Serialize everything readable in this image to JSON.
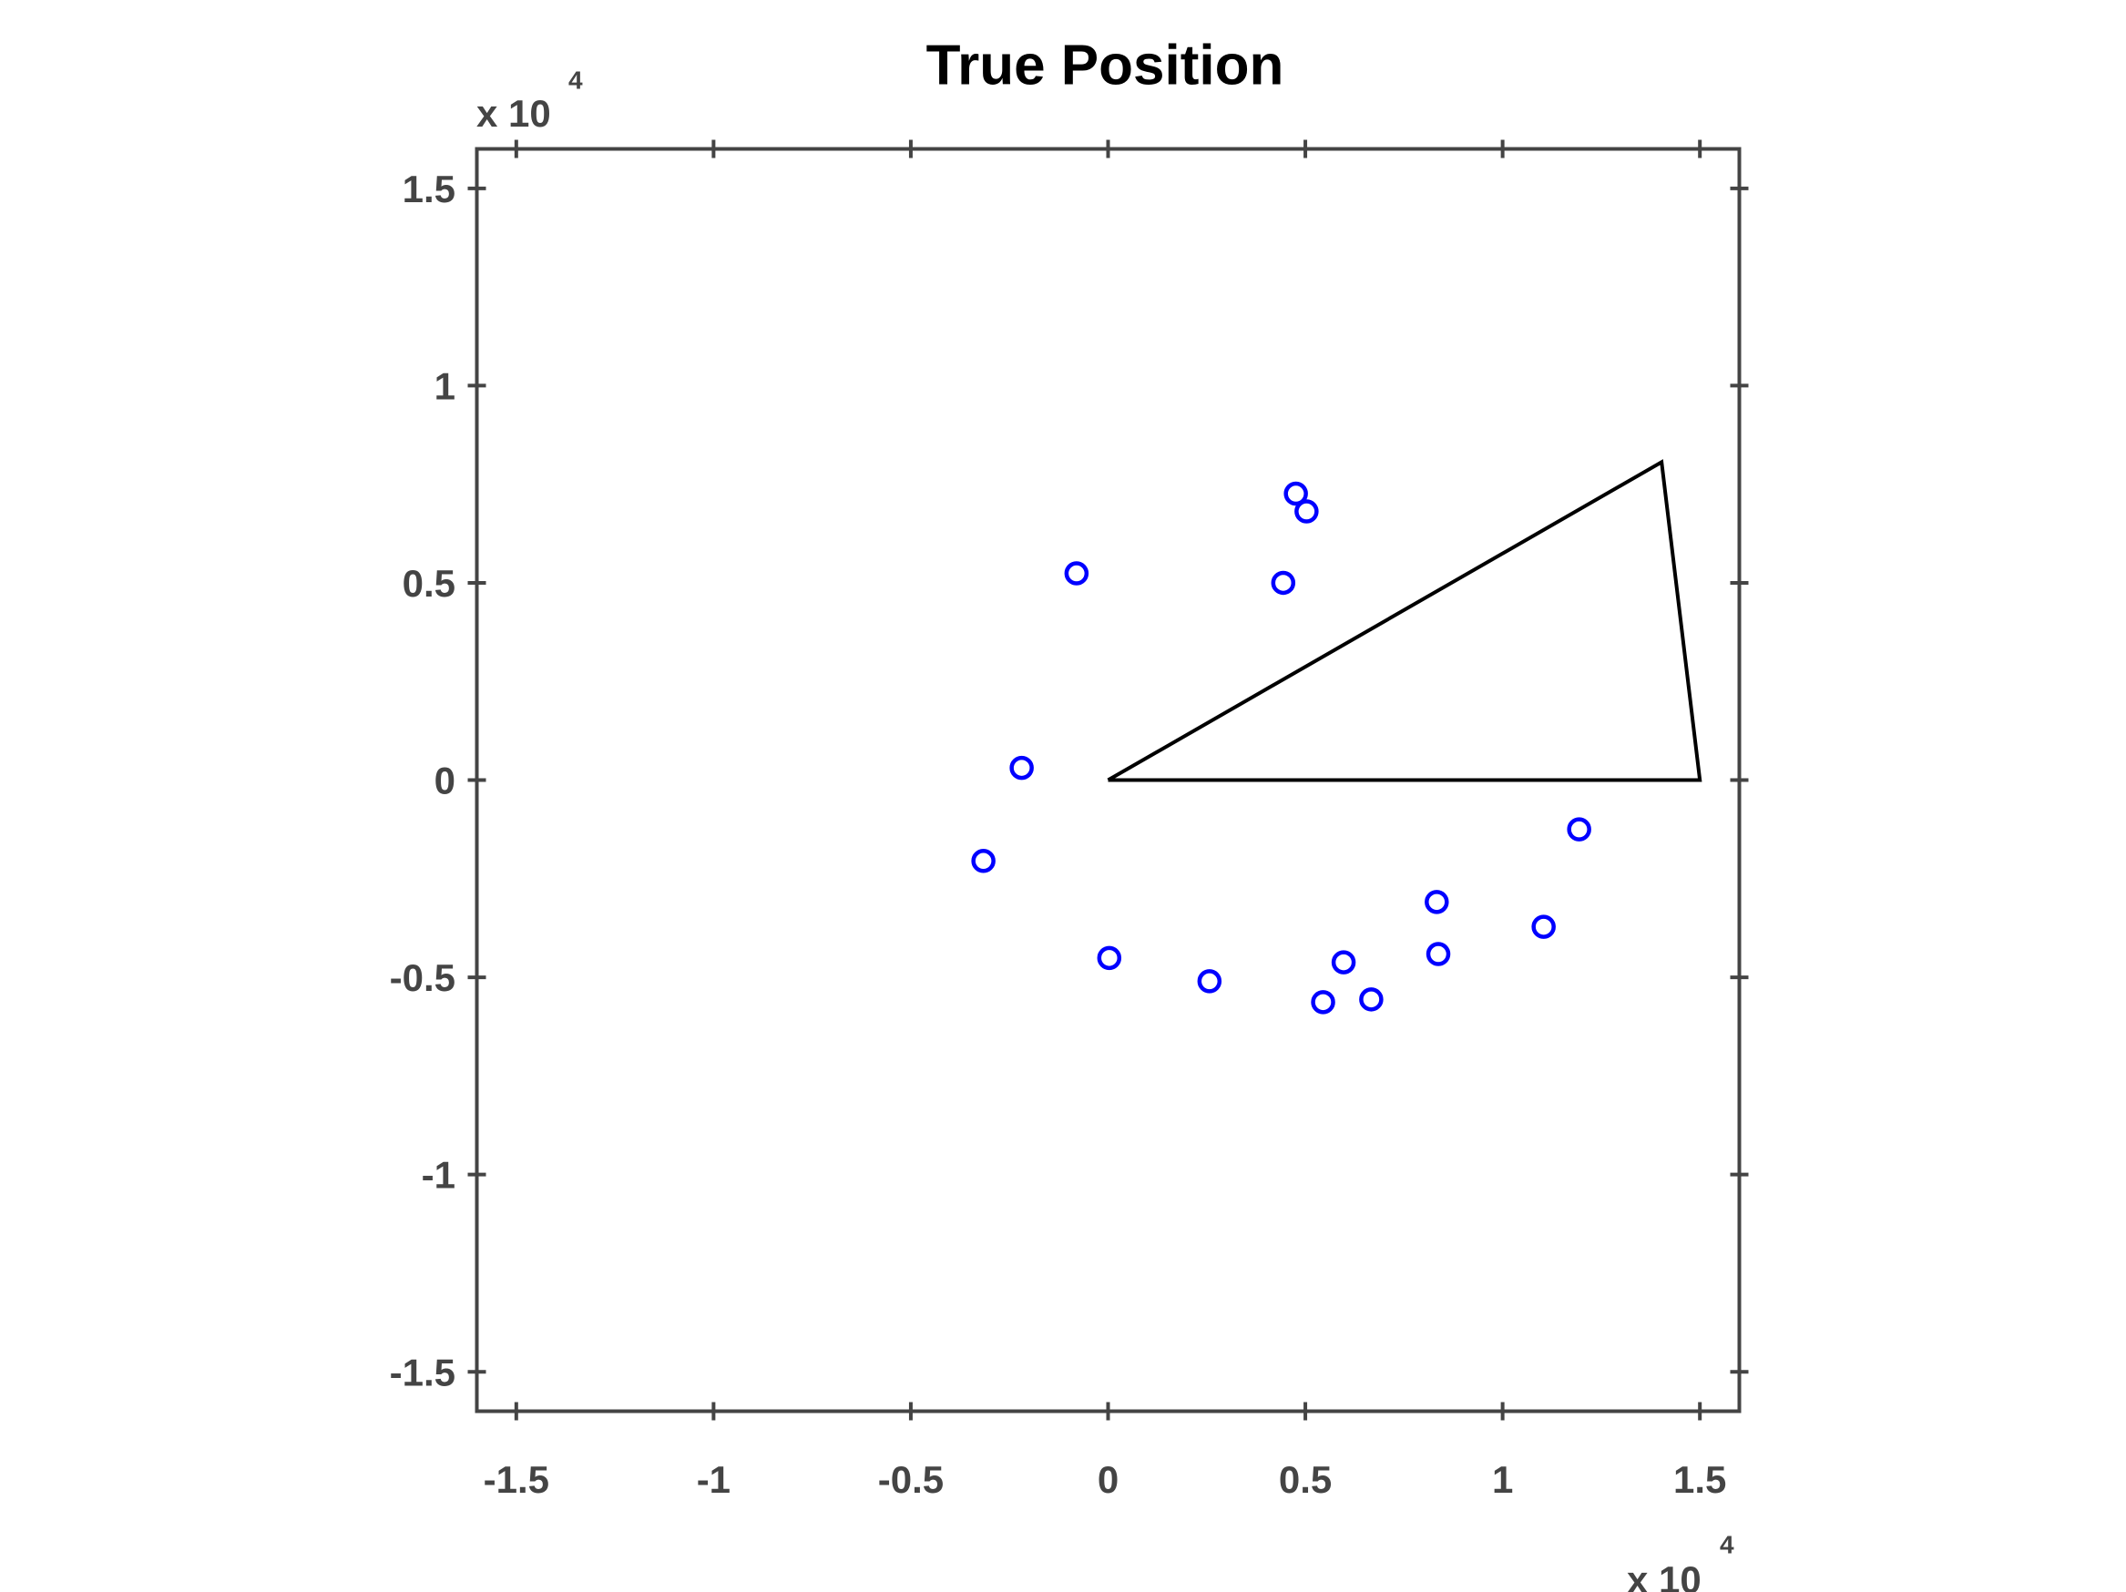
{
  "chart_data": {
    "type": "scatter",
    "title": "True Position",
    "x_multiplier": {
      "base": "x 10",
      "exponent": "4"
    },
    "y_multiplier": {
      "base": "x 10",
      "exponent": "4"
    },
    "xlim": [
      -1.6,
      1.6
    ],
    "ylim": [
      -1.6,
      1.6
    ],
    "xticks": [
      -1.5,
      -1,
      -0.5,
      0,
      0.5,
      1,
      1.5
    ],
    "yticks": [
      -1.5,
      -1,
      -0.5,
      0,
      0.5,
      1,
      1.5
    ],
    "grid": false,
    "series": [
      {
        "mode": "markers",
        "color": "#0000ff",
        "x": [
          0.476,
          0.503,
          -0.08,
          0.444,
          -0.219,
          -0.316,
          1.194,
          0.833,
          1.104,
          0.837,
          0.003,
          0.597,
          0.257,
          0.545,
          0.667
        ],
        "values": [
          0.726,
          0.681,
          0.524,
          0.5,
          0.031,
          -0.205,
          -0.125,
          -0.309,
          -0.372,
          -0.441,
          -0.451,
          -0.462,
          -0.51,
          -0.563,
          -0.556
        ]
      },
      {
        "mode": "line",
        "color": "#000000",
        "x": [
          0,
          1.403,
          1.5,
          0
        ],
        "values": [
          0,
          0.806,
          0,
          0
        ]
      }
    ]
  }
}
